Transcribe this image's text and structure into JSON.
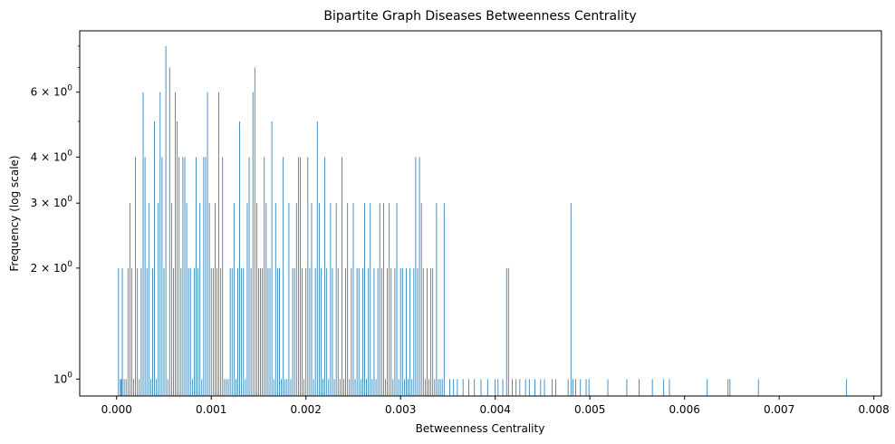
{
  "chart_data": {
    "type": "bar",
    "title": "Bipartite Graph Diseases Betweenness Centrality",
    "xlabel": "Betweenness Centrality",
    "ylabel": "Frequency (log scale)",
    "xlim": [
      -0.00039,
      0.00808
    ],
    "ylim": [
      0.9,
      8.8
    ],
    "yscale": "log",
    "bar_color": "#1f77b4",
    "bin_width": 7.7e-06,
    "x_ticks": [
      0.0,
      0.001,
      0.002,
      0.003,
      0.004,
      0.005,
      0.006,
      0.007,
      0.008
    ],
    "x_tick_labels": [
      "0.000",
      "0.001",
      "0.002",
      "0.003",
      "0.004",
      "0.005",
      "0.006",
      "0.007",
      "0.008"
    ],
    "y_ticks": [
      1,
      2,
      3,
      4,
      6
    ],
    "y_tick_labels": [
      {
        "base": "10",
        "exp": "0"
      },
      {
        "base": "2 × 10",
        "exp": "0"
      },
      {
        "base": "3 × 10",
        "exp": "0"
      },
      {
        "base": "4 × 10",
        "exp": "0"
      },
      {
        "base": "6 × 10",
        "exp": "0"
      }
    ],
    "y_minor_ticks": [
      5,
      7,
      8
    ],
    "grid": false,
    "x": [
      2e-05,
      4e-05,
      5e-05,
      6e-05,
      8e-05,
      0.0001,
      0.00012,
      0.00014,
      0.00016,
      0.00018,
      0.0002,
      0.00022,
      0.00024,
      0.00026,
      0.00028,
      0.0003,
      0.00032,
      0.00034,
      0.00036,
      0.00038,
      0.0004,
      0.00042,
      0.00044,
      0.00046,
      0.00048,
      0.0005,
      0.00052,
      0.00054,
      0.00056,
      0.00058,
      0.0006,
      0.00062,
      0.00064,
      0.00066,
      0.00068,
      0.0007,
      0.00072,
      0.00074,
      0.00076,
      0.00078,
      0.0008,
      0.00082,
      0.00084,
      0.00086,
      0.00088,
      0.0009,
      0.00092,
      0.00094,
      0.00096,
      0.00098,
      0.001,
      0.00102,
      0.00104,
      0.00106,
      0.00108,
      0.0011,
      0.00112,
      0.00114,
      0.00116,
      0.00118,
      0.0012,
      0.00122,
      0.00124,
      0.00126,
      0.00128,
      0.0013,
      0.00132,
      0.00134,
      0.00136,
      0.00138,
      0.0014,
      0.00142,
      0.00144,
      0.00146,
      0.00148,
      0.0015,
      0.00152,
      0.00154,
      0.00156,
      0.00158,
      0.0016,
      0.00162,
      0.00164,
      0.00166,
      0.00168,
      0.0017,
      0.00172,
      0.00174,
      0.00176,
      0.00178,
      0.0018,
      0.00182,
      0.00184,
      0.00186,
      0.00188,
      0.0019,
      0.00192,
      0.00194,
      0.00196,
      0.00198,
      0.002,
      0.00202,
      0.00204,
      0.00206,
      0.00208,
      0.0021,
      0.00212,
      0.00214,
      0.00216,
      0.00218,
      0.0022,
      0.00222,
      0.00224,
      0.00226,
      0.00228,
      0.0023,
      0.00232,
      0.00234,
      0.00236,
      0.00238,
      0.0024,
      0.00242,
      0.00244,
      0.00246,
      0.00248,
      0.0025,
      0.00252,
      0.00254,
      0.00256,
      0.00258,
      0.0026,
      0.00262,
      0.00264,
      0.00266,
      0.00268,
      0.0027,
      0.00272,
      0.00274,
      0.00276,
      0.00278,
      0.0028,
      0.00282,
      0.00284,
      0.00286,
      0.00288,
      0.0029,
      0.00292,
      0.00294,
      0.00296,
      0.00298,
      0.003,
      0.00302,
      0.00304,
      0.00306,
      0.00308,
      0.0031,
      0.00312,
      0.00314,
      0.00316,
      0.00318,
      0.0032,
      0.00322,
      0.00324,
      0.00326,
      0.00328,
      0.0033,
      0.00332,
      0.00334,
      0.00336,
      0.00338,
      0.0034,
      0.00342,
      0.00344,
      0.00346,
      0.00352,
      0.00356,
      0.0036,
      0.00366,
      0.00372,
      0.00378,
      0.00385,
      0.00392,
      0.004,
      0.00403,
      0.00408,
      0.00412,
      0.00414,
      0.00418,
      0.00422,
      0.00426,
      0.00432,
      0.00436,
      0.00442,
      0.00448,
      0.00452,
      0.0046,
      0.00464,
      0.00477,
      0.0048,
      0.00482,
      0.00485,
      0.0049,
      0.00496,
      0.00499,
      0.00519,
      0.00539,
      0.00552,
      0.00566,
      0.00578,
      0.00584,
      0.00624,
      0.00646,
      0.00648,
      0.00678,
      0.00771
    ],
    "values": [
      2,
      1,
      1,
      2,
      1,
      1,
      2,
      3,
      2,
      1,
      4,
      2,
      1,
      2,
      6,
      4,
      2,
      3,
      1,
      2,
      5,
      1,
      3,
      6,
      4,
      2,
      8,
      1,
      7,
      3,
      2,
      6,
      5,
      4,
      2,
      4,
      4,
      3,
      2,
      2,
      1,
      2,
      4,
      2,
      3,
      1,
      4,
      4,
      6,
      3,
      2,
      2,
      3,
      2,
      6,
      2,
      4,
      1,
      1,
      1,
      2,
      2,
      3,
      1,
      2,
      5,
      2,
      2,
      1,
      3,
      4,
      2,
      6,
      7,
      3,
      2,
      2,
      2,
      4,
      3,
      2,
      2,
      5,
      1,
      3,
      2,
      2,
      1,
      4,
      1,
      1,
      3,
      1,
      2,
      2,
      3,
      4,
      4,
      2,
      1,
      2,
      4,
      2,
      3,
      1,
      2,
      5,
      3,
      2,
      1,
      4,
      2,
      1,
      3,
      2,
      1,
      3,
      2,
      1,
      4,
      1,
      2,
      3,
      1,
      2,
      3,
      1,
      2,
      2,
      1,
      2,
      3,
      1,
      2,
      3,
      1,
      2,
      1,
      2,
      3,
      2,
      3,
      1,
      2,
      3,
      2,
      1,
      2,
      3,
      1,
      2,
      2,
      1,
      2,
      1,
      2,
      1,
      2,
      4,
      2,
      4,
      3,
      2,
      1,
      2,
      1,
      2,
      2,
      1,
      3,
      1,
      1,
      1,
      3,
      1,
      1,
      1,
      1,
      1,
      1,
      1,
      1,
      1,
      1,
      1,
      2,
      2,
      1,
      1,
      1,
      1,
      1,
      1,
      1,
      1,
      1,
      1,
      1,
      3,
      1,
      1,
      1,
      1,
      1,
      1,
      1,
      1,
      1,
      1,
      1,
      1,
      1,
      1,
      1,
      1
    ]
  }
}
